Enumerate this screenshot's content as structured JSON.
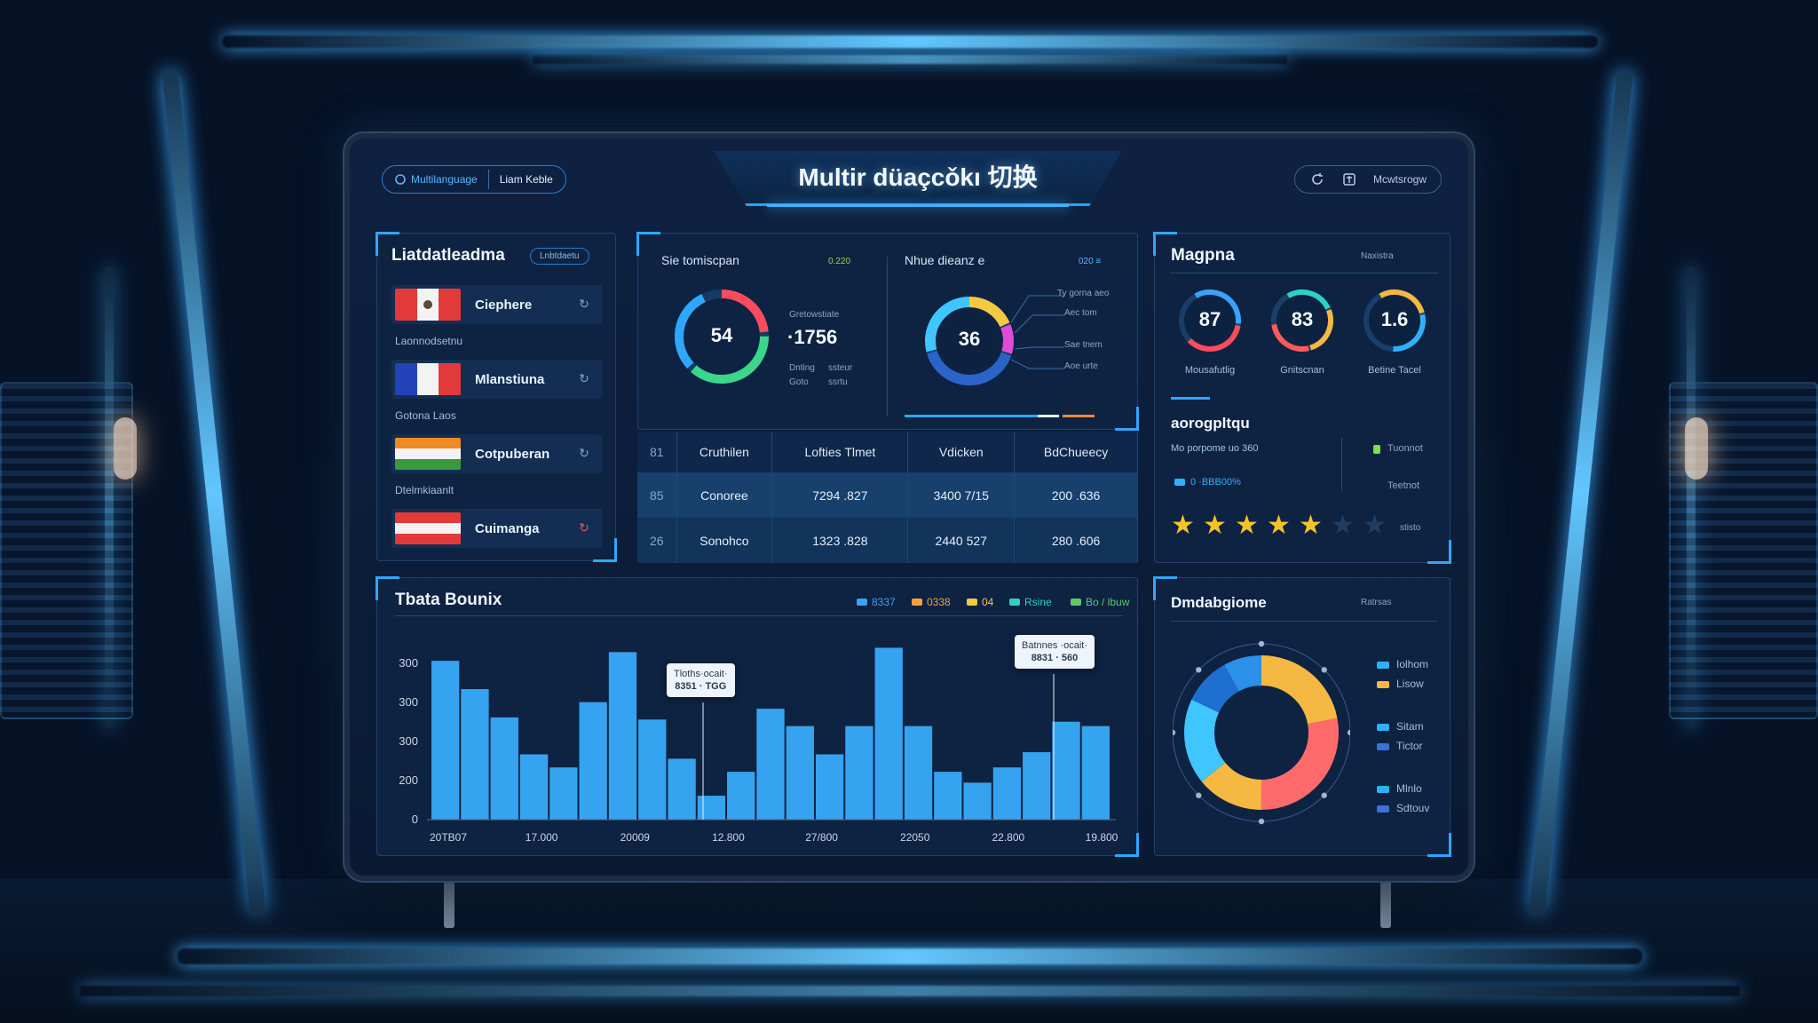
{
  "header": {
    "brand_text": "Multilanguage",
    "alt_text": "Liam Keble",
    "title": "Multir düaçcǒkı 切换",
    "right_text": "Mcwtsrogw"
  },
  "languages": {
    "title": "Liatdatleadma",
    "pill": "Lnbtdaetu",
    "items": [
      {
        "name": "Ciephere",
        "sub": "Laonnodsetnu"
      },
      {
        "name": "Mlanstiuna",
        "sub": "Gotona Laos"
      },
      {
        "name": "Cotpuberan",
        "sub": "Dtelmkiaanlt"
      },
      {
        "name": "Cuimanga",
        "sub": ""
      }
    ]
  },
  "stats": {
    "left": {
      "label": "Sie tomiscpan",
      "tag": "0.220",
      "donut_value": "54",
      "big": "·1756",
      "caption_top": "Gretowstiate",
      "caption_a": "Dnting",
      "caption_b": "ssteur",
      "caption_c": "Goto",
      "caption_d": "ssrtu"
    },
    "right": {
      "label": "Nhue dieanz e",
      "tag": "020 ≡",
      "donut_value": "36",
      "leaders": [
        "Ty gorna aeo",
        "Aec tom",
        "Sae tnem",
        "Aoe urte"
      ]
    }
  },
  "table": {
    "headers": [
      "81",
      "Cruthilen",
      "Lofties Tlmet",
      "Vdicken",
      "BdChueecy"
    ],
    "rows": [
      [
        "85",
        "Conoree",
        "7294 .827",
        "3400 7/15",
        "200 .636"
      ],
      [
        "26",
        "Sonohco",
        "1323 .828",
        "2440 527",
        "280 .606"
      ]
    ]
  },
  "magnitude": {
    "title": "Magpna",
    "pill": "Naxistra",
    "gauges": [
      {
        "value": "87",
        "caption": "Mousafutlig",
        "fraction": 0.72,
        "colors": [
          "#3aa2ff",
          "#ff4b5c"
        ]
      },
      {
        "value": "83",
        "caption": "Gnitscnan",
        "fraction": 0.82,
        "colors": [
          "#2fd1c5",
          "#f5b842",
          "#ff5a5a"
        ]
      },
      {
        "value": "1.6",
        "caption": "Betine Tacel",
        "fraction": 0.6,
        "colors": [
          "#f5b842",
          "#2fb0ff"
        ]
      }
    ],
    "sub_title": "aorogpltqu",
    "sub_line": "Mo porpome uo 360",
    "sub_legend": "Tuonnot",
    "sub_percent": "0 ·BBB00%",
    "sub_tech": "Teetnot",
    "rating_text": "stisto",
    "rating": 5,
    "rating_max": 7
  },
  "bar_chart": {
    "title": "Tbata Bounix",
    "legend": [
      {
        "label": "8337",
        "color": "#3aa2ff"
      },
      {
        "label": "0338",
        "color": "#f5a13a"
      },
      {
        "label": "04",
        "color": "#f5c842"
      },
      {
        "label": "Rsine",
        "color": "#2fd1c5"
      },
      {
        "label": "Bo / lbuw",
        "color": "#5dc96b"
      }
    ],
    "tooltips": [
      {
        "line1": "Tloths·ocait·",
        "line2": "8351 · TGG"
      },
      {
        "line1": "Batnnes ·ocait·",
        "line2": "8831 · 560"
      }
    ]
  },
  "donut_panel": {
    "title": "Dmdabgiome",
    "pill": "Ratrsas",
    "legend": [
      {
        "label": "Iolhom",
        "color": "#2fb0ff"
      },
      {
        "label": "Lisow",
        "color": "#f5b842"
      },
      {
        "label": "Sitam",
        "color": "#2fb0ff"
      },
      {
        "label": "Tictor",
        "color": "#3a72d8"
      },
      {
        "label": "Mlnlo",
        "color": "#2fb0ff"
      },
      {
        "label": "Sdtouv",
        "color": "#3a72d8"
      }
    ]
  },
  "chart_data": [
    {
      "type": "bar",
      "title": "Tbata Bounix",
      "ylim": [
        0,
        400
      ],
      "yticks": [
        "0",
        "200",
        "300",
        "300",
        "300"
      ],
      "xticks": [
        "20TB07",
        "17.000",
        "20009",
        "12.800",
        "27/800",
        "22050",
        "22.800",
        "19.800"
      ],
      "values": [
        365,
        300,
        235,
        150,
        120,
        270,
        385,
        230,
        140,
        55,
        110,
        255,
        215,
        150,
        215,
        395,
        215,
        110,
        85,
        120,
        155,
        225,
        215
      ],
      "annotations": [
        "8351 · TGG",
        "8831 · 560"
      ]
    },
    {
      "type": "pie",
      "title": "Dmdabgiome",
      "labels": [
        "Iolhom",
        "Lisow",
        "Sitam",
        "Tictor",
        "Mlnlo",
        "Sdtouv"
      ],
      "values": [
        22,
        28,
        14,
        18,
        10,
        8
      ],
      "colors": [
        "#f5b842",
        "#ff6b6b",
        "#f5b842",
        "#3fc6ff",
        "#1e6fd0",
        "#2c8fe8"
      ]
    }
  ],
  "colors": {
    "accent": "#2fa7ff",
    "bar": "#36a3f0",
    "panel": "#0e2442"
  }
}
